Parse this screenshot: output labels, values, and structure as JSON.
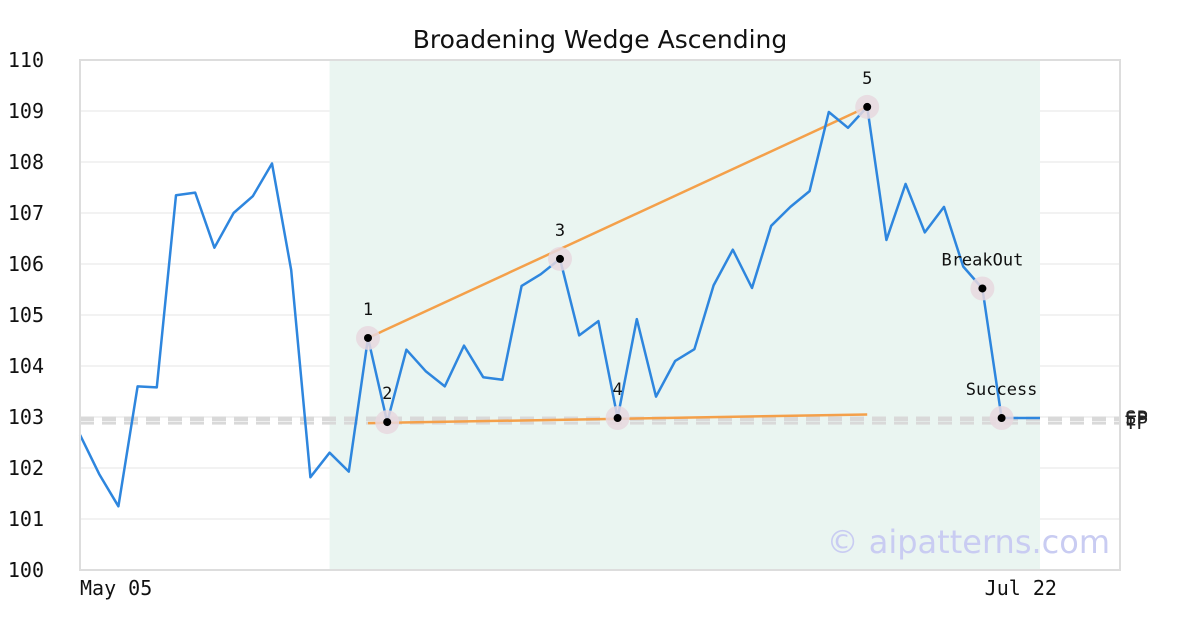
{
  "chart_data": {
    "type": "line",
    "title": "Broadening Wedge Ascending",
    "xlabel": "",
    "ylabel": "",
    "ylim": [
      100,
      110
    ],
    "yticks": [
      100,
      101,
      102,
      103,
      104,
      105,
      106,
      107,
      108,
      109,
      110
    ],
    "xtick_labels": [
      {
        "index": 0,
        "label": "May 05"
      },
      {
        "index": 49,
        "label": "Jul 22"
      }
    ],
    "grid": true,
    "series": [
      {
        "values": [
          102.65,
          101.88,
          101.25,
          103.6,
          103.58,
          107.35,
          107.4,
          106.32,
          107.0,
          107.33,
          107.97,
          105.88,
          101.82,
          102.3,
          101.93,
          104.55,
          102.9,
          104.32,
          103.9,
          103.6,
          104.4,
          103.78,
          103.73,
          105.57,
          105.8,
          106.1,
          104.6,
          104.88,
          102.98,
          104.92,
          103.4,
          104.1,
          104.33,
          105.58,
          106.28,
          105.53,
          106.75,
          107.12,
          107.43,
          108.98,
          108.67,
          109.08,
          106.47,
          107.57,
          106.62,
          107.12,
          105.95,
          105.52,
          102.98,
          102.98,
          102.98
        ],
        "color": "#2e86de"
      }
    ],
    "pattern_region": {
      "start_index": 13,
      "end_index": 50,
      "color": "#eaf5f1"
    },
    "trendlines": [
      {
        "from": {
          "index": 15,
          "value": 104.55
        },
        "to": {
          "index": 41,
          "value": 109.08
        },
        "color": "#f4a04a"
      },
      {
        "from": {
          "index": 15,
          "value": 102.88
        },
        "to": {
          "index": 41,
          "value": 103.05
        },
        "color": "#f4a04a"
      }
    ],
    "points": [
      {
        "label": "1",
        "index": 15,
        "value": 104.55
      },
      {
        "label": "2",
        "index": 16,
        "value": 102.9
      },
      {
        "label": "3",
        "index": 25,
        "value": 106.1
      },
      {
        "label": "4",
        "index": 28,
        "value": 102.98
      },
      {
        "label": "5",
        "index": 41,
        "value": 109.08
      },
      {
        "label": "BreakOut",
        "index": 47,
        "value": 105.52
      },
      {
        "label": "Success",
        "index": 48,
        "value": 102.98
      }
    ],
    "reference_lines": [
      {
        "label": "SP",
        "value": 102.98
      },
      {
        "label": "EP",
        "value": 102.95
      },
      {
        "label": "TP",
        "value": 102.88
      }
    ]
  },
  "watermark": "© aipatterns.com"
}
